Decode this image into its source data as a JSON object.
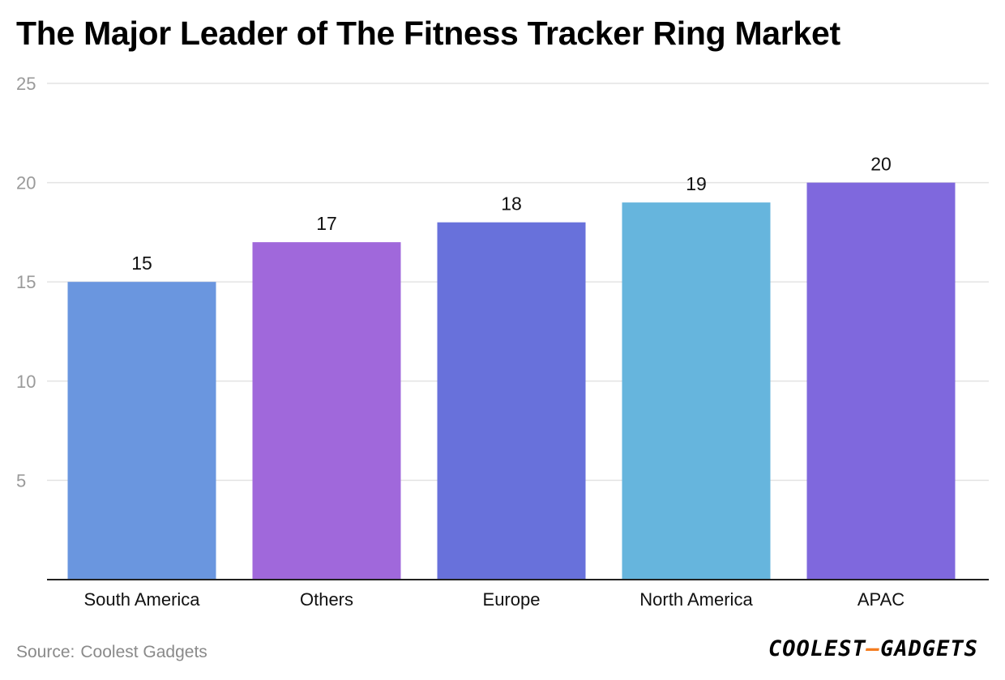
{
  "title": "The Major Leader of The Fitness Tracker Ring Market",
  "source": {
    "label": "Source:",
    "value": "Coolest Gadgets"
  },
  "brand": {
    "logo_text": "COOLEST-GADGETS",
    "accent_color": "#f47c20"
  },
  "chart_data": {
    "type": "bar",
    "title": "The Major Leader of The Fitness Tracker Ring Market",
    "xlabel": "",
    "ylabel": "",
    "categories": [
      "South America",
      "Others",
      "Europe",
      "North America",
      "APAC"
    ],
    "values": [
      15,
      17,
      18,
      19,
      20
    ],
    "colors": [
      "#6a96df",
      "#a068db",
      "#6871db",
      "#66b5dd",
      "#7f68dd"
    ],
    "ylim": [
      0,
      25
    ],
    "yticks": [
      5,
      10,
      15,
      20,
      25
    ],
    "grid": true,
    "legend": "none",
    "data_labels": true
  }
}
